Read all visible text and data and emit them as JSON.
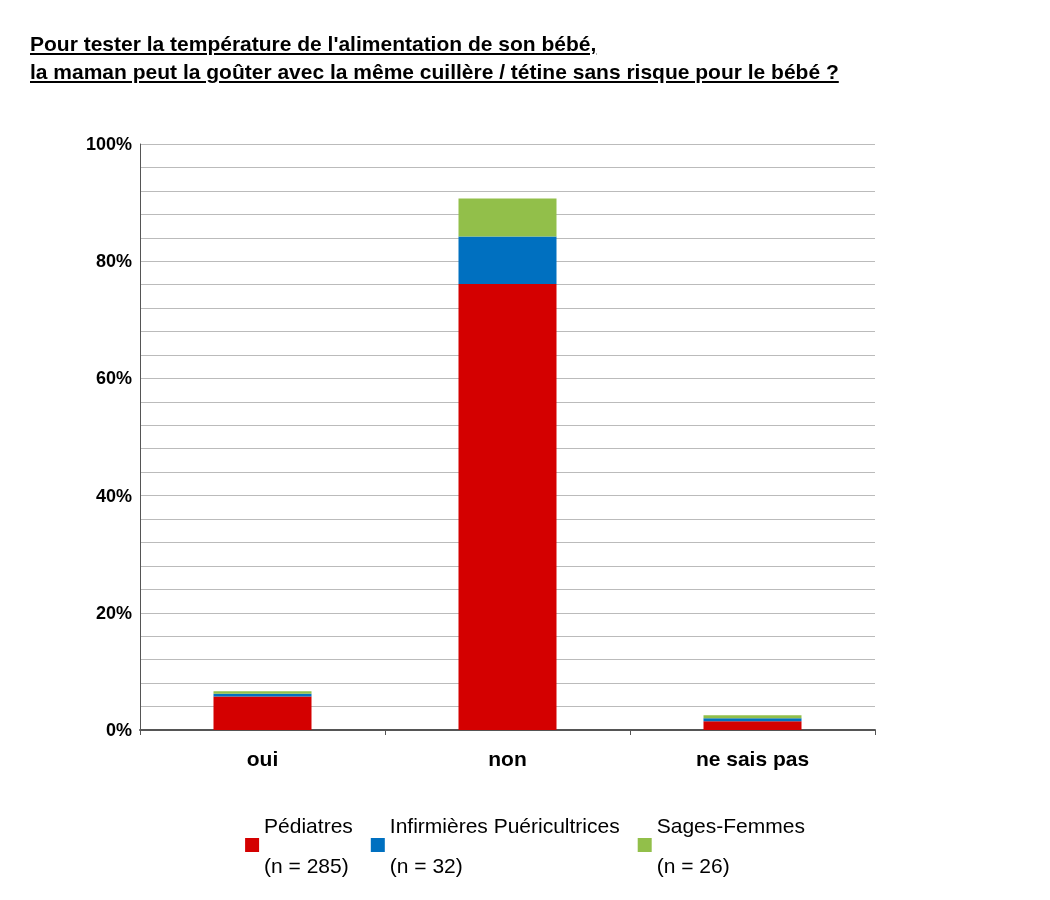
{
  "chart_data": {
    "type": "bar",
    "title": "Pour tester la température de l'alimentation de son bébé,\nla maman peut la goûter avec la même cuillère / tétine sans risque pour le bébé ?",
    "categories": [
      "oui",
      "non",
      "ne sais pas"
    ],
    "stacked": true,
    "series": [
      {
        "name": "Pédiatres\n(n = 285)",
        "color": "#d40000",
        "values": [
          5.7,
          76.1,
          1.5
        ]
      },
      {
        "name": "Infirmières Puéricultrices\n(n = 32)",
        "color": "#0070c0",
        "values": [
          0.5,
          8.1,
          0.5
        ]
      },
      {
        "name": "Sages-Femmes\n(n = 26)",
        "color": "#92bf4a",
        "values": [
          0.4,
          6.5,
          0.5
        ]
      }
    ],
    "ylim": [
      0,
      100
    ],
    "yticks": [
      {
        "value": 0,
        "label": "0%"
      },
      {
        "value": 4,
        "label": null
      },
      {
        "value": 8,
        "label": null
      },
      {
        "value": 12,
        "label": null
      },
      {
        "value": 16,
        "label": null
      },
      {
        "value": 20,
        "label": "20%"
      },
      {
        "value": 24,
        "label": null
      },
      {
        "value": 28,
        "label": null
      },
      {
        "value": 32,
        "label": null
      },
      {
        "value": 36,
        "label": null
      },
      {
        "value": 40,
        "label": "40%"
      },
      {
        "value": 44,
        "label": null
      },
      {
        "value": 48,
        "label": null
      },
      {
        "value": 52,
        "label": null
      },
      {
        "value": 56,
        "label": null
      },
      {
        "value": 60,
        "label": "60%"
      },
      {
        "value": 64,
        "label": null
      },
      {
        "value": 68,
        "label": null
      },
      {
        "value": 72,
        "label": null
      },
      {
        "value": 76,
        "label": null
      },
      {
        "value": 80,
        "label": "80%"
      },
      {
        "value": 84,
        "label": null
      },
      {
        "value": 88,
        "label": null
      },
      {
        "value": 92,
        "label": null
      },
      {
        "value": 96,
        "label": null
      },
      {
        "value": 100,
        "label": "100%"
      }
    ],
    "grid": "y",
    "legend": "bottom"
  }
}
